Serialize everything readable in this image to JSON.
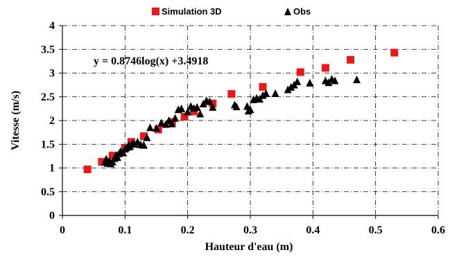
{
  "chart_data": {
    "type": "scatter",
    "xlabel": "Hauteur d'eau (m)",
    "ylabel": "Vitesse (m/s)",
    "xlim": [
      0,
      0.6
    ],
    "ylim": [
      0,
      4
    ],
    "x_ticks": [
      "0",
      "0.1",
      "0.2",
      "0.3",
      "0.4",
      "0.5",
      "0.6"
    ],
    "y_ticks": [
      "0",
      "0.5",
      "1",
      "1.5",
      "2",
      "2.5",
      "3",
      "3.5",
      "4"
    ],
    "grid": "dash-dot",
    "legend_position": "top",
    "annotation": "y = 0.8746log(x) +3.4918",
    "series": [
      {
        "name": "Simulation 3D",
        "marker": "square",
        "color": "#e8191b",
        "points": [
          [
            0.04,
            0.97
          ],
          [
            0.063,
            1.13
          ],
          [
            0.08,
            1.26
          ],
          [
            0.1,
            1.42
          ],
          [
            0.11,
            1.55
          ],
          [
            0.13,
            1.67
          ],
          [
            0.153,
            1.81
          ],
          [
            0.175,
            1.97
          ],
          [
            0.195,
            2.08
          ],
          [
            0.21,
            2.19
          ],
          [
            0.24,
            2.36
          ],
          [
            0.27,
            2.56
          ],
          [
            0.32,
            2.71
          ],
          [
            0.38,
            3.02
          ],
          [
            0.42,
            3.11
          ],
          [
            0.46,
            3.28
          ],
          [
            0.53,
            3.43
          ]
        ]
      },
      {
        "name": "Obs",
        "marker": "triangle",
        "color": "#000000",
        "points": [
          [
            0.068,
            1.12
          ],
          [
            0.07,
            1.19
          ],
          [
            0.072,
            1.1
          ],
          [
            0.075,
            1.15
          ],
          [
            0.077,
            1.09
          ],
          [
            0.08,
            1.13
          ],
          [
            0.083,
            1.2
          ],
          [
            0.086,
            1.27
          ],
          [
            0.088,
            1.22
          ],
          [
            0.09,
            1.3
          ],
          [
            0.093,
            1.35
          ],
          [
            0.097,
            1.32
          ],
          [
            0.1,
            1.4
          ],
          [
            0.103,
            1.43
          ],
          [
            0.106,
            1.48
          ],
          [
            0.108,
            1.45
          ],
          [
            0.112,
            1.52
          ],
          [
            0.115,
            1.5
          ],
          [
            0.12,
            1.55
          ],
          [
            0.125,
            1.49
          ],
          [
            0.13,
            1.48
          ],
          [
            0.135,
            1.64
          ],
          [
            0.14,
            1.85
          ],
          [
            0.15,
            1.84
          ],
          [
            0.158,
            1.95
          ],
          [
            0.165,
            1.92
          ],
          [
            0.17,
            2.0
          ],
          [
            0.175,
            1.93
          ],
          [
            0.18,
            2.05
          ],
          [
            0.185,
            2.23
          ],
          [
            0.19,
            2.25
          ],
          [
            0.2,
            2.18
          ],
          [
            0.205,
            2.3
          ],
          [
            0.21,
            2.26
          ],
          [
            0.215,
            2.28
          ],
          [
            0.22,
            2.14
          ],
          [
            0.225,
            2.35
          ],
          [
            0.23,
            2.42
          ],
          [
            0.235,
            2.4
          ],
          [
            0.24,
            2.28
          ],
          [
            0.275,
            2.33
          ],
          [
            0.278,
            2.29
          ],
          [
            0.295,
            2.3
          ],
          [
            0.297,
            2.2
          ],
          [
            0.3,
            2.23
          ],
          [
            0.305,
            2.44
          ],
          [
            0.31,
            2.47
          ],
          [
            0.315,
            2.45
          ],
          [
            0.32,
            2.53
          ],
          [
            0.325,
            2.57
          ],
          [
            0.34,
            2.57
          ],
          [
            0.36,
            2.65
          ],
          [
            0.365,
            2.7
          ],
          [
            0.37,
            2.75
          ],
          [
            0.375,
            2.82
          ],
          [
            0.395,
            2.79
          ],
          [
            0.42,
            2.84
          ],
          [
            0.425,
            2.8
          ],
          [
            0.43,
            2.87
          ],
          [
            0.435,
            2.84
          ],
          [
            0.47,
            2.86
          ]
        ]
      }
    ]
  }
}
